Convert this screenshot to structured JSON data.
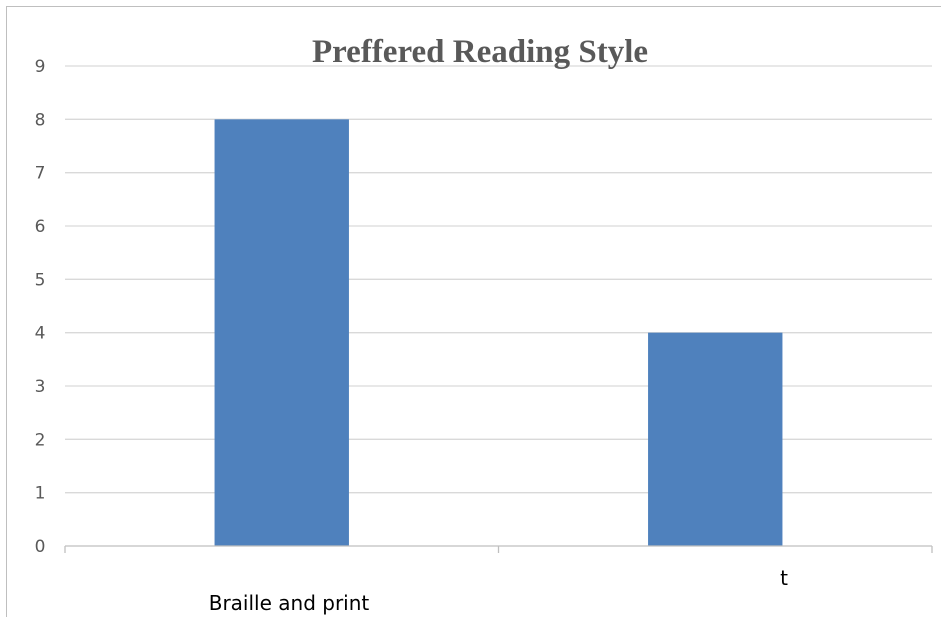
{
  "chart_data": {
    "type": "bar",
    "title": "Preffered Reading Style",
    "categories": [
      "Braille and print",
      "t"
    ],
    "values": [
      8,
      4
    ],
    "ylim": [
      0,
      9
    ],
    "y_ticks": [
      0,
      1,
      2,
      3,
      4,
      5,
      6,
      7,
      8,
      9
    ],
    "grid": true,
    "legend": "none",
    "colors": {
      "bar": "#4f81bd",
      "gridline": "#d9d9d9",
      "axis": "#bfbfbf",
      "text": "#595959"
    }
  }
}
